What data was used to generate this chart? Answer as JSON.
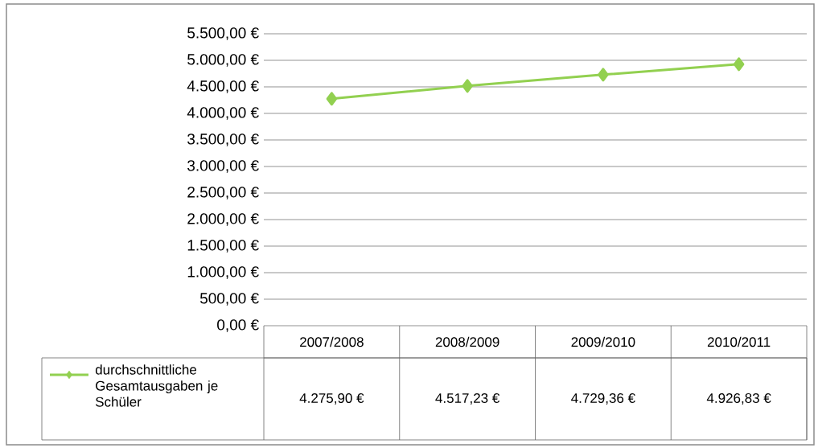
{
  "chart_data": {
    "type": "line",
    "categories": [
      "2007/2008",
      "2008/2009",
      "2009/2010",
      "2010/2011"
    ],
    "series": [
      {
        "name": "durchschnittliche Gesamtausgaben je Schüler",
        "color": "#92d050",
        "values": [
          4275.9,
          4517.23,
          4729.36,
          4926.83
        ],
        "value_labels": [
          "4.275,90 €",
          "4.517,23 €",
          "4.729,36 €",
          "4.926,83 €"
        ]
      }
    ],
    "ylim": [
      0,
      5500
    ],
    "yticks": [
      {
        "value": 0,
        "label": "0,00 €"
      },
      {
        "value": 500,
        "label": "500,00 €"
      },
      {
        "value": 1000,
        "label": "1.000,00 €"
      },
      {
        "value": 1500,
        "label": "1.500,00 €"
      },
      {
        "value": 2000,
        "label": "2.000,00 €"
      },
      {
        "value": 2500,
        "label": "2.500,00 €"
      },
      {
        "value": 3000,
        "label": "3.000,00 €"
      },
      {
        "value": 3500,
        "label": "3.500,00 €"
      },
      {
        "value": 4000,
        "label": "4.000,00 €"
      },
      {
        "value": 4500,
        "label": "4.500,00 €"
      },
      {
        "value": 5000,
        "label": "5.000,00 €"
      },
      {
        "value": 5500,
        "label": "5.500,00 €"
      }
    ],
    "grid": "y",
    "legend": "bottom left",
    "marker": "diamond",
    "line_style": "solid"
  }
}
